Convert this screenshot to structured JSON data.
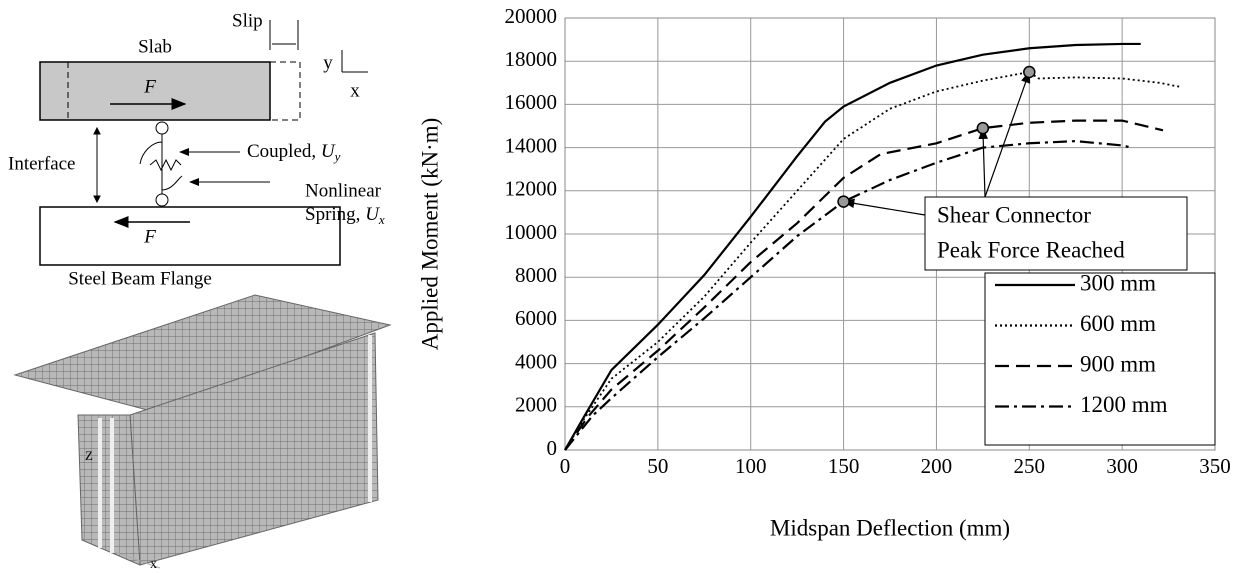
{
  "chart_data": {
    "type": "line",
    "x_label": "Midspan Deflection (mm)",
    "y_label": "Applied Moment (kN·m)",
    "xlim": [
      0,
      350
    ],
    "xticks": [
      0,
      50,
      100,
      150,
      200,
      250,
      300,
      350
    ],
    "ylim": [
      0,
      20000
    ],
    "yticks": [
      0,
      2000,
      4000,
      6000,
      8000,
      10000,
      12000,
      14000,
      16000,
      18000,
      20000
    ],
    "grid": true,
    "legend": "lower right",
    "series": [
      {
        "name": "300 mm",
        "color": "#000000",
        "dash": "solid",
        "x": [
          0,
          10,
          25,
          50,
          75,
          100,
          125,
          140,
          150,
          175,
          200,
          225,
          250,
          275,
          300,
          310
        ],
        "values": [
          0,
          1500,
          3700,
          5800,
          8100,
          10800,
          13600,
          15200,
          15900,
          17000,
          17800,
          18300,
          18600,
          18750,
          18800,
          18800
        ]
      },
      {
        "name": "600 mm",
        "color": "#000000",
        "dash": "dotted",
        "x": [
          0,
          10,
          25,
          50,
          75,
          100,
          125,
          150,
          175,
          200,
          225,
          250,
          255,
          275,
          300,
          320,
          332
        ],
        "values": [
          0,
          1400,
          3300,
          5000,
          7100,
          9600,
          12000,
          14400,
          15800,
          16600,
          17100,
          17500,
          17200,
          17250,
          17200,
          17000,
          16800
        ]
      },
      {
        "name": "900 mm",
        "color": "#000000",
        "dash": "dashed",
        "x": [
          0,
          12,
          25,
          50,
          75,
          100,
          125,
          150,
          170,
          200,
          225,
          250,
          275,
          300,
          322
        ],
        "values": [
          0,
          1500,
          2800,
          4600,
          6600,
          8700,
          10500,
          12600,
          13700,
          14200,
          14900,
          15150,
          15250,
          15250,
          14800
        ]
      },
      {
        "name": "1200 mm",
        "color": "#000000",
        "dash": "dashdot",
        "x": [
          0,
          15,
          25,
          50,
          75,
          100,
          125,
          150,
          175,
          200,
          225,
          250,
          275,
          300,
          305
        ],
        "values": [
          0,
          1600,
          2400,
          4300,
          6100,
          8000,
          9900,
          11500,
          12500,
          13300,
          14000,
          14200,
          14300,
          14100,
          14000
        ]
      }
    ],
    "markers": {
      "x": [
        150,
        225,
        250
      ],
      "values": [
        11500,
        14900,
        17500
      ],
      "color": "#999999"
    },
    "annotation": [
      "Shear Connector",
      "Peak Force Reached"
    ]
  },
  "diagram": {
    "slip": "Slip",
    "slab": "Slab",
    "axis_y": "y",
    "axis_x": "x",
    "force_top": "F",
    "coupled": {
      "text": "Coupled, ",
      "var": "U",
      "sub": "y"
    },
    "interface": "Interface",
    "nonlinear": "Nonlinear",
    "spring": {
      "text": "Spring, ",
      "var": "U",
      "sub": "x"
    },
    "force_bottom": "F",
    "flange": "Steel Beam Flange"
  },
  "mesh": {
    "axis_z": "Z",
    "axis_x": "x"
  }
}
